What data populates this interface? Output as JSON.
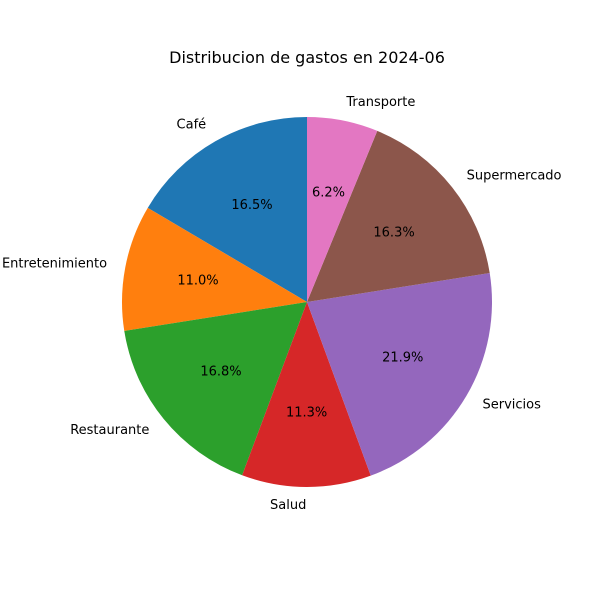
{
  "chart_data": {
    "type": "pie",
    "title": "Distribucion de gastos en 2024-06",
    "start_angle_deg": 90,
    "direction": "counterclockwise",
    "slices": [
      {
        "label": "Café",
        "value": 16.5,
        "pct_label": "16.5%",
        "color": "#1f77b4"
      },
      {
        "label": "Entretenimiento",
        "value": 11.0,
        "pct_label": "11.0%",
        "color": "#ff7f0e"
      },
      {
        "label": "Restaurante",
        "value": 16.8,
        "pct_label": "16.8%",
        "color": "#2ca02c"
      },
      {
        "label": "Salud",
        "value": 11.3,
        "pct_label": "11.3%",
        "color": "#d62728"
      },
      {
        "label": "Servicios",
        "value": 21.9,
        "pct_label": "21.9%",
        "color": "#9467bd"
      },
      {
        "label": "Supermercado",
        "value": 16.3,
        "pct_label": "16.3%",
        "color": "#8c564b"
      },
      {
        "label": "Transporte",
        "value": 6.2,
        "pct_label": "6.2%",
        "color": "#e377c2"
      }
    ]
  }
}
